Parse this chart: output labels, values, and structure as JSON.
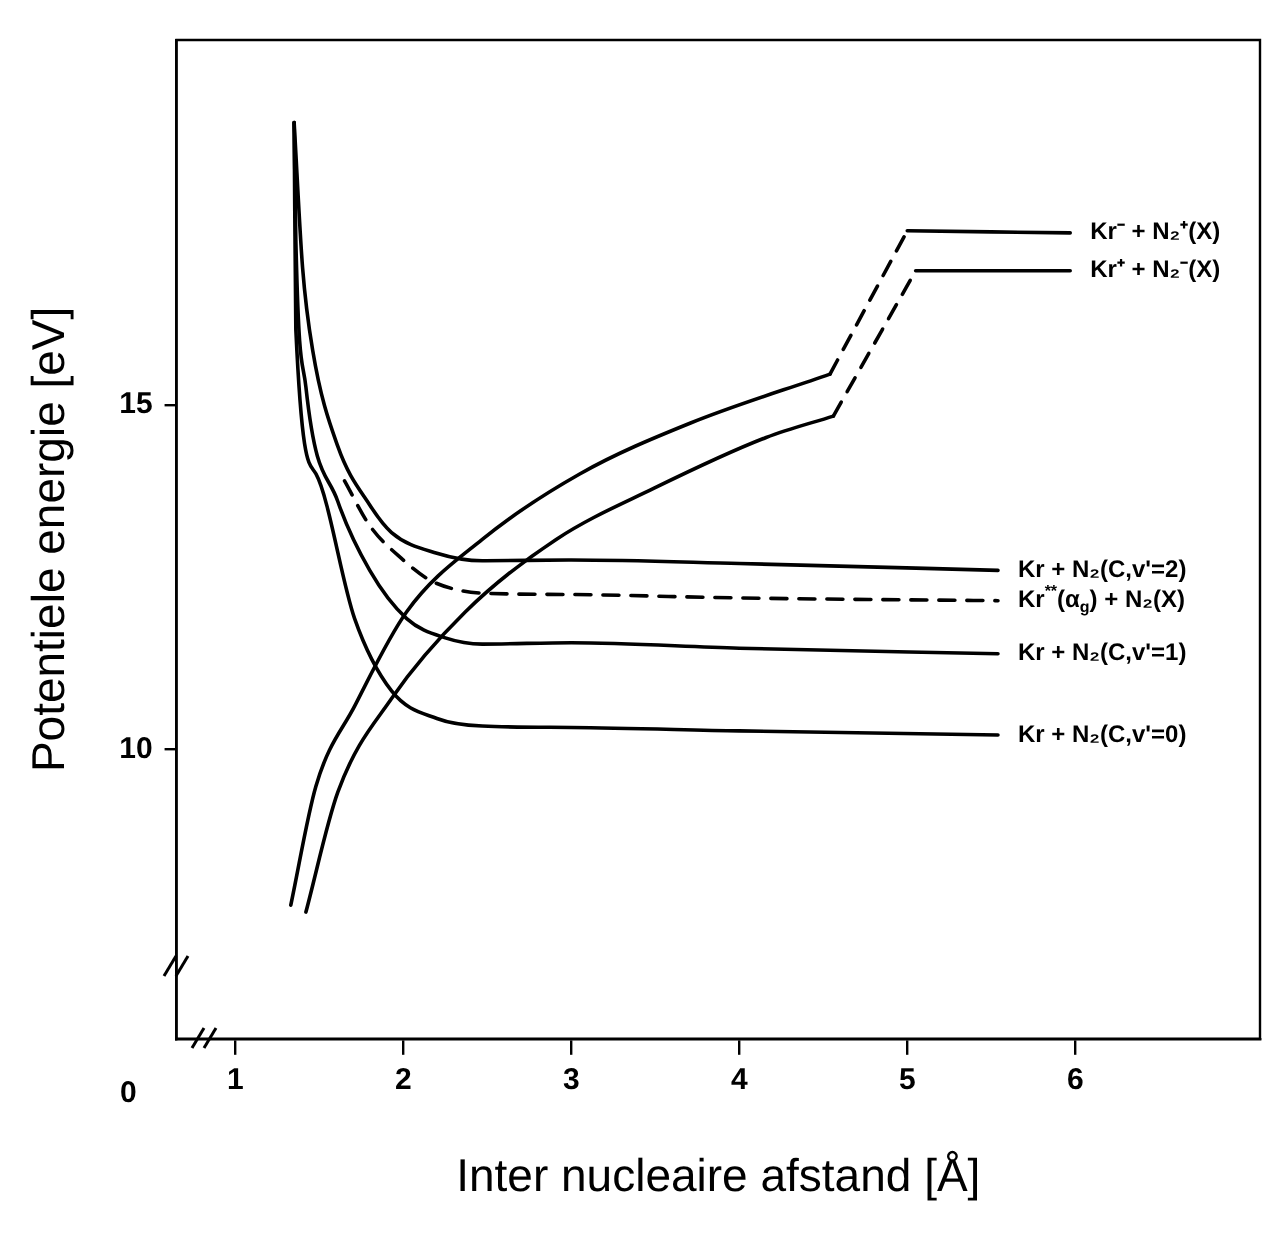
{
  "chart_data": {
    "type": "line",
    "xlabel": "Inter nucleaire afstand [Å]",
    "ylabel": "Potentiele energie [eV]",
    "xlim": [
      0.65,
      7.1
    ],
    "ylim": [
      5.8,
      20.3
    ],
    "xticks": [
      1,
      2,
      3,
      4,
      5,
      6
    ],
    "yticks": [
      10,
      15
    ],
    "grid": false,
    "legend": false,
    "marker": "none",
    "annotations": [
      "0"
    ],
    "series": [
      {
        "name": "Kr + N₂(C,v'=0)",
        "color": "#000000",
        "line_style": "solid",
        "x": [
          1.35,
          1.36,
          1.48,
          1.71,
          1.93,
          2.2,
          2.47,
          3,
          4,
          5.54
        ],
        "values": [
          19.1,
          16.1,
          14.0,
          11.9,
          10.85,
          10.45,
          10.34,
          10.32,
          10.27,
          10.21
        ]
      },
      {
        "name": "Kr + N₂(C,v'=1)",
        "color": "#000000",
        "line_style": "solid",
        "x": [
          1.35,
          1.36,
          1.42,
          1.61,
          1.8,
          2.02,
          2.25,
          2.47,
          3,
          4,
          5.54
        ],
        "values": [
          19.1,
          17.4,
          15.26,
          13.6,
          12.6,
          11.9,
          11.62,
          11.53,
          11.55,
          11.47,
          11.39
        ]
      },
      {
        "name": "Kr$^{**}$(α$_{g}$) + N₂(X)",
        "color": "#000000",
        "line_style": "dashed",
        "x": [
          1.65,
          1.8,
          2.0,
          2.15,
          2.3,
          2.47,
          3,
          4,
          5.54
        ],
        "values": [
          13.9,
          13.25,
          12.75,
          12.47,
          12.33,
          12.27,
          12.25,
          12.2,
          12.16
        ]
      },
      {
        "name": "Kr + N₂(C,v'=2)",
        "color": "#000000",
        "line_style": "solid",
        "x": [
          1.35,
          1.4,
          1.46,
          1.61,
          1.8,
          1.93,
          2.2,
          2.47,
          3,
          4,
          5.54
        ],
        "values": [
          19.1,
          17.0,
          15.8,
          14.4,
          13.55,
          13.15,
          12.85,
          12.74,
          12.75,
          12.7,
          12.6
        ]
      },
      {
        "color": "#000000",
        "line_style": "solid",
        "x": [
          1.33,
          1.48,
          1.71,
          2.02,
          2.47,
          3.05,
          3.71,
          4.54
        ],
        "values": [
          7.74,
          9.47,
          10.63,
          12.0,
          13.05,
          14.0,
          14.74,
          15.45
        ]
      },
      {
        "color": "#000000",
        "line_style": "dashed",
        "x": [
          4.54,
          5.0
        ],
        "values": [
          15.45,
          17.53
        ]
      },
      {
        "name": "Kr⁻ + N₂⁺(X)",
        "color": "#000000",
        "line_style": "solid",
        "x": [
          5.0,
          5.97
        ],
        "values": [
          17.53,
          17.5
        ]
      },
      {
        "color": "#000000",
        "line_style": "solid",
        "x": [
          1.42,
          1.61,
          1.93,
          2.37,
          2.91,
          3.49,
          4.16,
          4.56
        ],
        "values": [
          7.64,
          9.38,
          10.74,
          12.0,
          13.05,
          13.79,
          14.53,
          14.84
        ]
      },
      {
        "color": "#000000",
        "line_style": "dashed",
        "x": [
          4.56,
          5.05
        ],
        "values": [
          14.84,
          16.95
        ]
      },
      {
        "name": "Kr⁺ + N₂⁻(X)",
        "color": "#000000",
        "line_style": "solid",
        "x": [
          5.05,
          5.97
        ],
        "values": [
          16.95,
          16.95
        ]
      }
    ]
  }
}
